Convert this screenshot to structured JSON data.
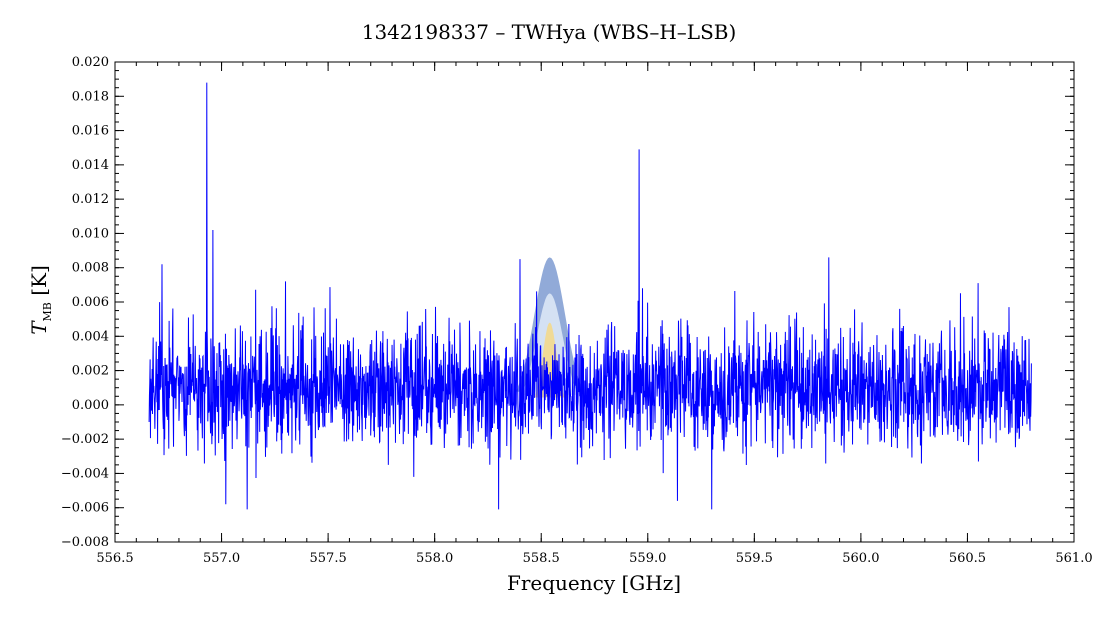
{
  "chart_data": {
    "type": "line",
    "title": "1342198337 – TWHya (WBS–H–LSB)",
    "xlabel": "Frequency [GHz]",
    "ylabel_symbol": "T",
    "ylabel_subscript": "MB",
    "ylabel_unit": "[K]",
    "xlim": [
      556.5,
      561.0
    ],
    "ylim": [
      -0.008,
      0.02
    ],
    "x_ticks": [
      556.5,
      557.0,
      557.5,
      558.0,
      558.5,
      559.0,
      559.5,
      560.0,
      560.5,
      561.0
    ],
    "x_tick_labels": [
      "556.5",
      "557.0",
      "557.5",
      "558.0",
      "558.5",
      "559.0",
      "559.5",
      "560.0",
      "560.5",
      "561.0"
    ],
    "y_ticks": [
      -0.008,
      -0.006,
      -0.004,
      -0.002,
      0.0,
      0.002,
      0.004,
      0.006,
      0.008,
      0.01,
      0.012,
      0.014,
      0.016,
      0.018,
      0.02
    ],
    "y_tick_labels": [
      "−0.008",
      "−0.006",
      "−0.004",
      "−0.002",
      "0.000",
      "0.002",
      "0.004",
      "0.006",
      "0.008",
      "0.010",
      "0.012",
      "0.014",
      "0.016",
      "0.018",
      "0.020"
    ],
    "grid": false,
    "series": [
      {
        "color": "#0000ff",
        "description_range": [
          556.66,
          560.8
        ],
        "noise_mean": 0.001,
        "noise_sigma": 0.0018,
        "spikes": [
          {
            "x": 556.93,
            "y": 0.0188
          },
          {
            "x": 556.96,
            "y": 0.0102
          },
          {
            "x": 558.96,
            "y": 0.0149
          },
          {
            "x": 557.02,
            "y": -0.0058
          },
          {
            "x": 558.3,
            "y": -0.0061
          },
          {
            "x": 559.3,
            "y": -0.0061
          },
          {
            "x": 557.12,
            "y": -0.0061
          },
          {
            "x": 556.72,
            "y": 0.0082
          },
          {
            "x": 558.4,
            "y": 0.0085
          },
          {
            "x": 559.85,
            "y": 0.0086
          },
          {
            "x": 557.3,
            "y": 0.0072
          },
          {
            "x": 560.55,
            "y": 0.0071
          }
        ]
      }
    ],
    "model_band": {
      "center": 558.54,
      "outer_peak": 0.0086,
      "inner_peak": 0.0065,
      "width_ghz": 0.16,
      "outer_color": "#7e9bd1",
      "inner_color": "#dbe7f6",
      "core_color": "#f3d98c"
    }
  }
}
